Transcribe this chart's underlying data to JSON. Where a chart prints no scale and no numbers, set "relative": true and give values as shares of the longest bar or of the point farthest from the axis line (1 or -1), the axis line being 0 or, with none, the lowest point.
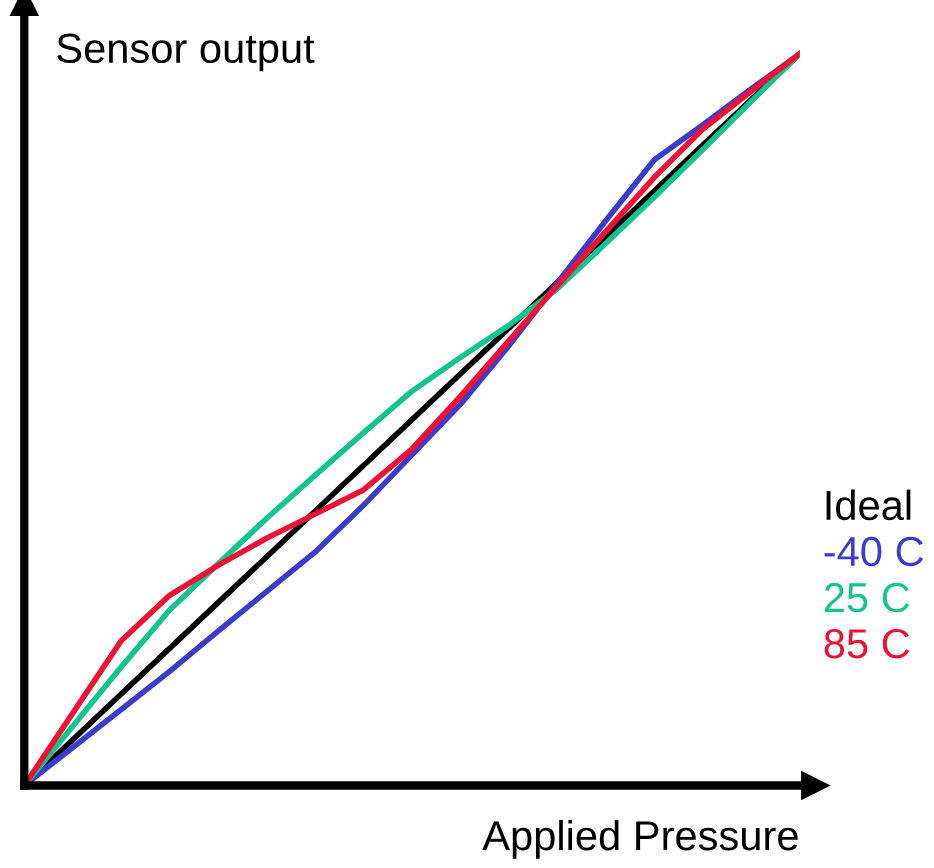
{
  "chart_data": {
    "type": "line",
    "relative": true,
    "xlabel": "Applied Pressure",
    "ylabel": "Sensor output",
    "categories": [
      null,
      null,
      null,
      null,
      null,
      null,
      null,
      null,
      null,
      null,
      null,
      null,
      null,
      null,
      null,
      null,
      null
    ],
    "series": [
      {
        "name": "Ideal",
        "color": "#000000",
        "values": [
          0,
          0.0625,
          0.125,
          0.1875,
          0.25,
          0.3125,
          0.375,
          0.4375,
          0.5,
          0.5625,
          0.625,
          0.6875,
          0.75,
          0.8125,
          0.875,
          0.9375,
          1
        ]
      },
      {
        "name": "-40 C",
        "color": "#3b3bcc",
        "values": [
          0,
          0.052,
          0.104,
          0.156,
          0.211,
          0.265,
          0.319,
          0.383,
          0.452,
          0.521,
          0.601,
          0.687,
          0.772,
          0.855,
          0.903,
          0.952,
          1
        ]
      },
      {
        "name": "25 C",
        "color": "#11c490",
        "values": [
          0,
          0.081,
          0.162,
          0.24,
          0.303,
          0.365,
          0.424,
          0.482,
          0.539,
          0.585,
          0.629,
          0.679,
          0.741,
          0.804,
          0.869,
          0.935,
          1
        ]
      },
      {
        "name": "85 C",
        "color": "#ee1133",
        "values": [
          0,
          0.099,
          0.198,
          0.26,
          0.301,
          0.338,
          0.371,
          0.404,
          0.46,
          0.532,
          0.608,
          0.683,
          0.757,
          0.831,
          0.897,
          0.949,
          1
        ]
      }
    ]
  }
}
